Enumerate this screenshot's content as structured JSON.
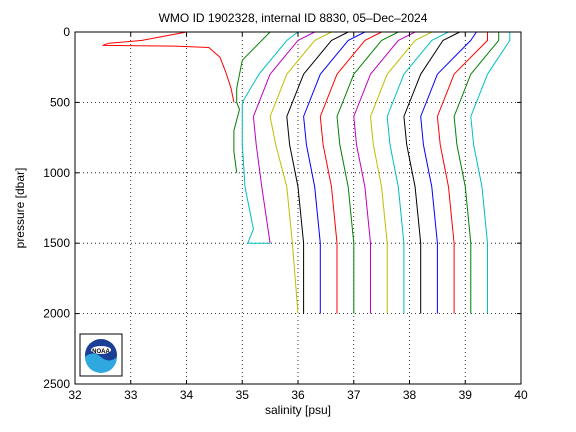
{
  "chart_data": {
    "type": "line",
    "title": "WMO ID 1902328, internal ID 8830, 05–Dec–2024",
    "xlabel": "salinity [psu]",
    "ylabel": "pressure [dbar]",
    "xlim": [
      32,
      40
    ],
    "ylim": [
      0,
      2500
    ],
    "y_reversed": true,
    "xticks": [
      "32",
      "33",
      "34",
      "35",
      "36",
      "37",
      "38",
      "39",
      "40"
    ],
    "yticks": [
      "0",
      "500",
      "1000",
      "1500",
      "2000",
      "2500"
    ],
    "grid": true,
    "logo": "NOAA",
    "series": [
      {
        "color": "#ff0000",
        "points": [
          [
            34.0,
            0
          ],
          [
            33.2,
            60
          ],
          [
            32.6,
            80
          ],
          [
            32.5,
            95
          ],
          [
            33.8,
            100
          ],
          [
            34.4,
            110
          ],
          [
            34.6,
            180
          ],
          [
            34.7,
            280
          ],
          [
            34.8,
            400
          ],
          [
            34.85,
            500
          ]
        ]
      },
      {
        "color": "#008000",
        "points": [
          [
            35.5,
            0
          ],
          [
            35.0,
            200
          ],
          [
            34.9,
            400
          ],
          [
            34.9,
            500
          ],
          [
            34.95,
            550
          ],
          [
            34.85,
            700
          ],
          [
            34.85,
            850
          ],
          [
            34.9,
            1000
          ]
        ]
      },
      {
        "color": "#00bfbf",
        "points": [
          [
            36.0,
            0
          ],
          [
            35.8,
            60
          ],
          [
            35.3,
            300
          ],
          [
            35.0,
            500
          ],
          [
            35.0,
            800
          ],
          [
            35.05,
            1100
          ],
          [
            35.2,
            1400
          ],
          [
            35.1,
            1500
          ],
          [
            35.5,
            1500
          ]
        ]
      },
      {
        "color": "#bf00bf",
        "points": [
          [
            36.3,
            0
          ],
          [
            36.0,
            60
          ],
          [
            35.5,
            300
          ],
          [
            35.2,
            600
          ],
          [
            35.25,
            800
          ],
          [
            35.35,
            1100
          ],
          [
            35.5,
            1500
          ]
        ]
      },
      {
        "color": "#bfbf00",
        "points": [
          [
            36.6,
            0
          ],
          [
            36.3,
            60
          ],
          [
            35.8,
            300
          ],
          [
            35.5,
            600
          ],
          [
            35.6,
            800
          ],
          [
            35.8,
            1100
          ],
          [
            35.9,
            1500
          ],
          [
            36.0,
            2000
          ]
        ]
      },
      {
        "color": "#000000",
        "points": [
          [
            36.9,
            0
          ],
          [
            36.6,
            60
          ],
          [
            36.1,
            300
          ],
          [
            35.8,
            600
          ],
          [
            35.85,
            800
          ],
          [
            36.0,
            1100
          ],
          [
            36.1,
            1500
          ],
          [
            36.1,
            2000
          ]
        ]
      },
      {
        "color": "#0000ff",
        "points": [
          [
            37.2,
            0
          ],
          [
            36.9,
            60
          ],
          [
            36.4,
            300
          ],
          [
            36.1,
            600
          ],
          [
            36.15,
            800
          ],
          [
            36.3,
            1100
          ],
          [
            36.4,
            1500
          ],
          [
            36.4,
            2000
          ]
        ]
      },
      {
        "color": "#ff0000",
        "points": [
          [
            37.5,
            0
          ],
          [
            37.2,
            60
          ],
          [
            36.7,
            300
          ],
          [
            36.4,
            600
          ],
          [
            36.45,
            800
          ],
          [
            36.6,
            1100
          ],
          [
            36.7,
            1500
          ],
          [
            36.7,
            2000
          ]
        ]
      },
      {
        "color": "#008000",
        "points": [
          [
            37.8,
            0
          ],
          [
            37.5,
            60
          ],
          [
            37.0,
            300
          ],
          [
            36.7,
            600
          ],
          [
            36.75,
            800
          ],
          [
            36.9,
            1100
          ],
          [
            37.0,
            1500
          ],
          [
            37.0,
            2000
          ]
        ]
      },
      {
        "color": "#bf00bf",
        "points": [
          [
            38.1,
            0
          ],
          [
            37.8,
            60
          ],
          [
            37.3,
            300
          ],
          [
            37.0,
            600
          ],
          [
            37.05,
            800
          ],
          [
            37.2,
            1100
          ],
          [
            37.3,
            1500
          ],
          [
            37.3,
            2000
          ]
        ]
      },
      {
        "color": "#bfbf00",
        "points": [
          [
            38.4,
            0
          ],
          [
            38.1,
            60
          ],
          [
            37.6,
            300
          ],
          [
            37.3,
            600
          ],
          [
            37.35,
            800
          ],
          [
            37.5,
            1100
          ],
          [
            37.6,
            1500
          ],
          [
            37.6,
            2000
          ]
        ]
      },
      {
        "color": "#00bfbf",
        "points": [
          [
            38.7,
            0
          ],
          [
            38.4,
            60
          ],
          [
            37.9,
            300
          ],
          [
            37.6,
            600
          ],
          [
            37.65,
            800
          ],
          [
            37.8,
            1100
          ],
          [
            37.9,
            1500
          ],
          [
            37.9,
            2000
          ]
        ]
      },
      {
        "color": "#000000",
        "points": [
          [
            38.9,
            0
          ],
          [
            38.6,
            60
          ],
          [
            38.2,
            300
          ],
          [
            37.9,
            600
          ],
          [
            37.95,
            800
          ],
          [
            38.1,
            1100
          ],
          [
            38.2,
            1500
          ],
          [
            38.2,
            2000
          ]
        ]
      },
      {
        "color": "#0000ff",
        "points": [
          [
            39.2,
            0
          ],
          [
            39.1,
            60
          ],
          [
            38.5,
            300
          ],
          [
            38.2,
            600
          ],
          [
            38.25,
            800
          ],
          [
            38.4,
            1100
          ],
          [
            38.5,
            1500
          ],
          [
            38.5,
            2000
          ]
        ]
      },
      {
        "color": "#ff0000",
        "points": [
          [
            39.4,
            0
          ],
          [
            39.4,
            60
          ],
          [
            38.8,
            300
          ],
          [
            38.5,
            600
          ],
          [
            38.55,
            800
          ],
          [
            38.7,
            1100
          ],
          [
            38.8,
            1500
          ],
          [
            38.8,
            2000
          ]
        ]
      },
      {
        "color": "#008000",
        "points": [
          [
            39.6,
            0
          ],
          [
            39.6,
            60
          ],
          [
            39.1,
            300
          ],
          [
            38.8,
            600
          ],
          [
            38.85,
            800
          ],
          [
            39.0,
            1100
          ],
          [
            39.1,
            1500
          ],
          [
            39.1,
            2000
          ]
        ]
      },
      {
        "color": "#00bfbf",
        "points": [
          [
            39.8,
            0
          ],
          [
            39.8,
            60
          ],
          [
            39.4,
            300
          ],
          [
            39.1,
            600
          ],
          [
            39.15,
            800
          ],
          [
            39.3,
            1100
          ],
          [
            39.4,
            1500
          ],
          [
            39.4,
            2000
          ]
        ]
      }
    ]
  }
}
